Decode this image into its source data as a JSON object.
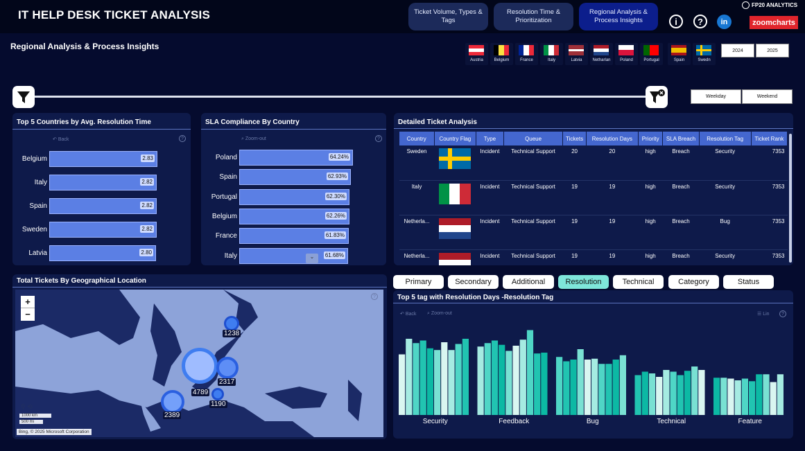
{
  "header": {
    "title": "IT HELP DESK TICKET ANALYSIS",
    "nav": [
      "Ticket Volume, Types & Tags",
      "Resolution Time & Prioritization",
      "Regional Analysis & Process Insights"
    ],
    "info_icon": "info-icon",
    "help_icon": "help-icon",
    "linkedin_label": "in",
    "brand": "FP20 ANALYTICS",
    "zoomcharts": "zoomcharts"
  },
  "page_title": "Regional Analysis & Process Insights",
  "flags": [
    "Austria",
    "Belgium",
    "France",
    "Italy",
    "Latvia",
    "Netharlan",
    "Poland",
    "Portugal",
    "Spain",
    "Swedn"
  ],
  "years": [
    "2024",
    "2025"
  ],
  "daytypes": [
    "Weekday",
    "Weekend"
  ],
  "top5": {
    "title": "Top 5 Countries by Avg. Resolution Time",
    "back": "Back",
    "help": "?",
    "items": [
      {
        "label": "Belgium",
        "value": "2.83",
        "v": 2.83
      },
      {
        "label": "Italy",
        "value": "2.82",
        "v": 2.82
      },
      {
        "label": "Spain",
        "value": "2.82",
        "v": 2.82
      },
      {
        "label": "Sweden",
        "value": "2.82",
        "v": 2.82
      },
      {
        "label": "Latvia",
        "value": "2.80",
        "v": 2.8
      }
    ]
  },
  "sla": {
    "title": "SLA Compliance By Country",
    "zoom": "Zoom-out",
    "help": "?",
    "items": [
      {
        "label": "Poland",
        "value": "64.24%",
        "v": 64.24
      },
      {
        "label": "Spain",
        "value": "62.93%",
        "v": 62.93
      },
      {
        "label": "Portugal",
        "value": "62.30%",
        "v": 62.3
      },
      {
        "label": "Belgium",
        "value": "62.26%",
        "v": 62.26
      },
      {
        "label": "France",
        "value": "61.83%",
        "v": 61.83
      },
      {
        "label": "Italy",
        "value": "61.68%",
        "v": 61.68
      }
    ]
  },
  "detail": {
    "title": "Detailed Ticket Analysis",
    "columns": [
      "Country",
      "Country Flag",
      "Type",
      "Queue",
      "Tickets",
      "Resolution Days",
      "Priority",
      "SLA Breach",
      "Resolution Tag",
      "Ticket Rank"
    ],
    "rows": [
      {
        "country": "Sweden",
        "flag": "se",
        "type": "Incident",
        "queue": "Technical Support",
        "tickets": "20",
        "days": "20",
        "priority": "high",
        "breach": "Breach",
        "tag": "Security",
        "rank": "7353"
      },
      {
        "country": "Italy",
        "flag": "it",
        "type": "Incident",
        "queue": "Technical Support",
        "tickets": "19",
        "days": "19",
        "priority": "high",
        "breach": "Breach",
        "tag": "Security",
        "rank": "7353"
      },
      {
        "country": "Netherla...",
        "flag": "nl",
        "type": "Incident",
        "queue": "Technical Support",
        "tickets": "19",
        "days": "19",
        "priority": "high",
        "breach": "Breach",
        "tag": "Bug",
        "rank": "7353"
      },
      {
        "country": "Netherla...",
        "flag": "nl",
        "type": "Incident",
        "queue": "Technical Support",
        "tickets": "19",
        "days": "19",
        "priority": "high",
        "breach": "Breach",
        "tag": "Security",
        "rank": "7353"
      }
    ]
  },
  "map": {
    "title": "Total Tickets By Geographical Location",
    "zoom_in": "+",
    "zoom_out": "−",
    "help": "?",
    "scale1": "1000 km",
    "scale2": "500 mi",
    "credit": "Bing, © 2025 Microsoft Corporation",
    "labels": [
      "1238",
      "2317",
      "4789",
      "1190",
      "2389"
    ]
  },
  "tags": {
    "buttons": [
      "Primary",
      "Secondary",
      "Additional",
      "Resolution",
      "Technical",
      "Category",
      "Status"
    ],
    "active": "Resolution",
    "title": "Top 5 tag with Resolution Days -Resolution Tag",
    "back": "Back",
    "zoom": "Zoom-out",
    "scale": "Lin",
    "help": "?"
  },
  "chart_data": {
    "type": "bar",
    "title": "Top 5 tag with Resolution Days -Resolution Tag",
    "categories": [
      "Security",
      "Feedback",
      "Bug",
      "Technical",
      "Feature"
    ],
    "bars_per_category": 10,
    "values": [
      [
        0.7,
        0.88,
        0.83,
        0.86,
        0.77,
        0.75,
        0.84,
        0.75,
        0.82,
        0.88
      ],
      [
        0.79,
        0.83,
        0.86,
        0.81,
        0.74,
        0.8,
        0.87,
        0.98,
        0.71,
        0.72
      ],
      [
        0.67,
        0.62,
        0.64,
        0.76,
        0.64,
        0.65,
        0.59,
        0.59,
        0.64,
        0.69
      ],
      [
        0.46,
        0.5,
        0.48,
        0.44,
        0.52,
        0.5,
        0.46,
        0.51,
        0.56,
        0.52
      ],
      [
        0.43,
        0.43,
        0.42,
        0.4,
        0.42,
        0.39,
        0.47,
        0.47,
        0.38,
        0.47
      ]
    ],
    "colors": [
      "#d9f6f1",
      "#a5ebe2",
      "#4fd6c6",
      "#21c4b1",
      "#0cb9a4",
      "#79e1d3"
    ]
  }
}
